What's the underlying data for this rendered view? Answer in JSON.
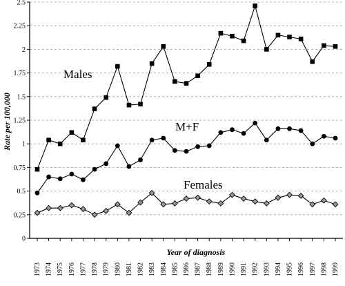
{
  "chart_data": {
    "type": "line",
    "title": "",
    "xlabel": "Year of diagnosis",
    "ylabel": "Rate per 100,000",
    "ylim": [
      0,
      2.5
    ],
    "grid": true,
    "grid_style": "dashed horizontal",
    "legend": "inline labels",
    "x": [
      "1973",
      "1974",
      "1975",
      "1976",
      "1977",
      "1978",
      "1979",
      "1980",
      "1981",
      "1982",
      "1983",
      "1984",
      "1985",
      "1986",
      "1987",
      "1988",
      "1989",
      "1990",
      "1991",
      "1992",
      "1993",
      "1994",
      "1995",
      "1996",
      "1997",
      "1998",
      "1999"
    ],
    "y_ticks": [
      "0",
      "0.25",
      "0.5",
      "0.75",
      "1",
      "1.25",
      "1.5",
      "1.75",
      "2",
      "2.25",
      "2.5"
    ],
    "series": [
      {
        "name": "Males",
        "marker": "square",
        "values": [
          0.73,
          1.04,
          1.0,
          1.12,
          1.04,
          1.37,
          1.49,
          1.82,
          1.41,
          1.42,
          1.85,
          2.03,
          1.66,
          1.64,
          1.72,
          1.84,
          2.17,
          2.14,
          2.09,
          2.46,
          2.0,
          2.15,
          2.13,
          2.11,
          1.87,
          2.04,
          2.03
        ]
      },
      {
        "name": "M+F",
        "marker": "circle",
        "values": [
          0.48,
          0.65,
          0.63,
          0.68,
          0.62,
          0.73,
          0.79,
          0.98,
          0.76,
          0.83,
          1.04,
          1.06,
          0.93,
          0.92,
          0.97,
          0.98,
          1.12,
          1.15,
          1.11,
          1.22,
          1.04,
          1.16,
          1.16,
          1.14,
          1.0,
          1.08,
          1.06
        ]
      },
      {
        "name": "Females",
        "marker": "diamond",
        "values": [
          0.27,
          0.32,
          0.32,
          0.35,
          0.31,
          0.25,
          0.29,
          0.36,
          0.27,
          0.38,
          0.48,
          0.36,
          0.37,
          0.42,
          0.43,
          0.39,
          0.37,
          0.46,
          0.42,
          0.39,
          0.37,
          0.43,
          0.46,
          0.45,
          0.36,
          0.4,
          0.36
        ]
      }
    ]
  }
}
